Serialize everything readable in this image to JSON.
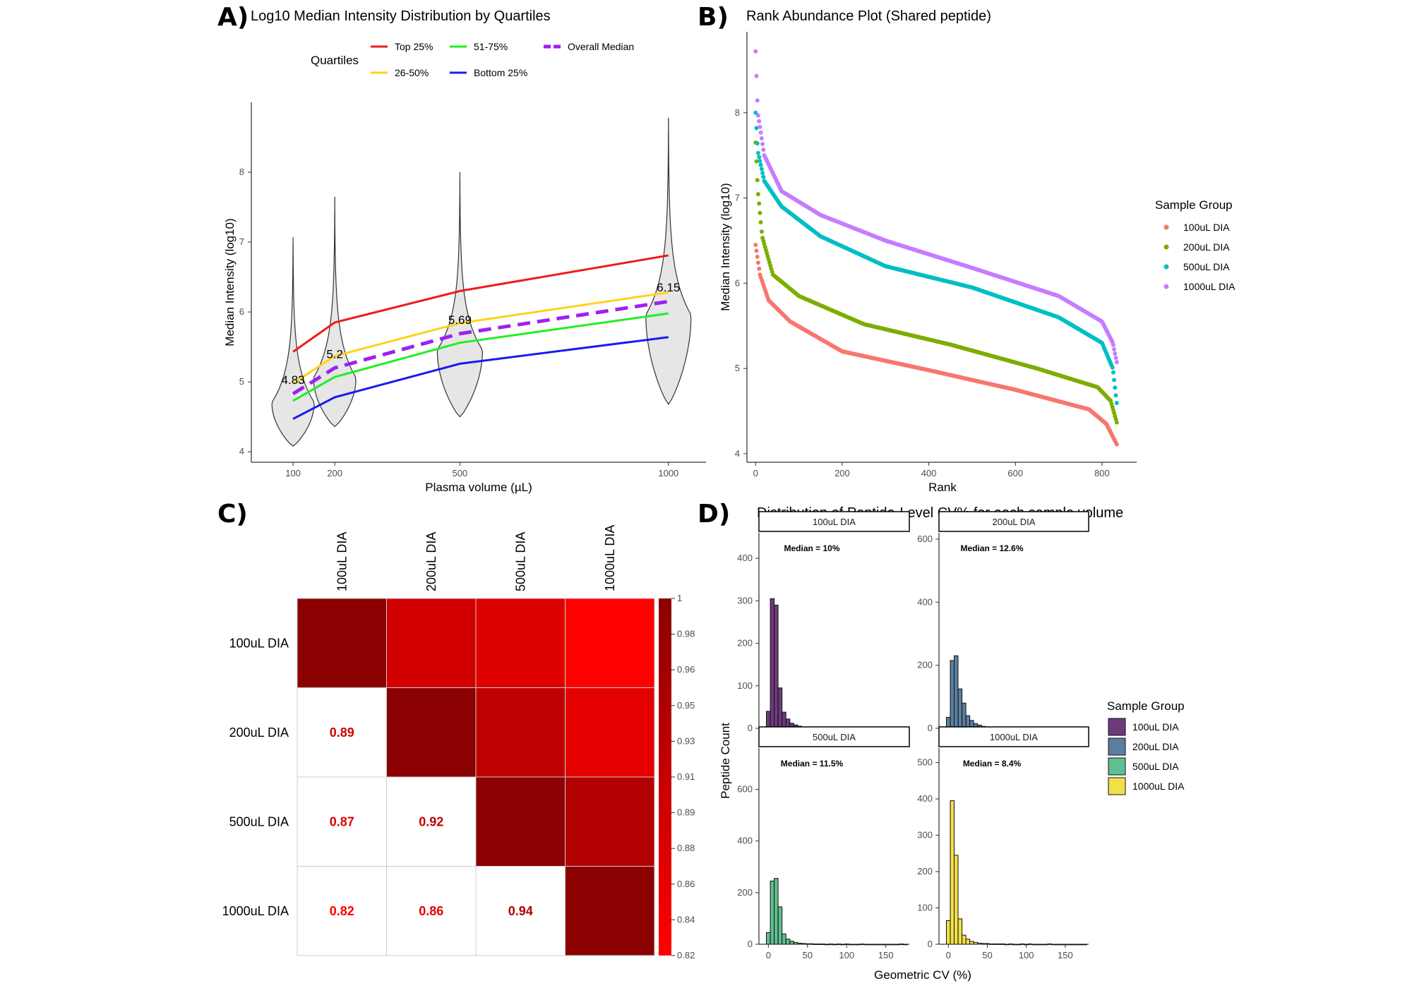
{
  "panels": {
    "A": {
      "letter": "A)",
      "title": "Log10 Median Intensity Distribution by Quartiles",
      "legend_title": "Quartiles",
      "legend": [
        {
          "name": "Top 25%",
          "color": "#ee1c1c",
          "dash": false
        },
        {
          "name": "51-75%",
          "color": "#22ee22",
          "dash": false
        },
        {
          "name": "Overall Median",
          "color": "#a020f0",
          "dash": true
        },
        {
          "name": "26-50%",
          "color": "#ffd21a",
          "dash": false
        },
        {
          "name": "Bottom 25%",
          "color": "#1a1aee",
          "dash": false
        }
      ]
    },
    "B": {
      "letter": "B)"
    },
    "C": {
      "letter": "C)"
    },
    "D": {
      "letter": "D)"
    }
  },
  "chart_data": [
    {
      "id": "A",
      "type": "line",
      "title": "Log10 Median Intensity Distribution by Quartiles",
      "xlabel": "Plasma volume (µL)",
      "ylabel": "Median Intensity (log10)",
      "xticks": [
        100,
        200,
        500,
        1000
      ],
      "yticks": [
        4,
        5,
        6,
        7,
        8
      ],
      "xlim": [
        0,
        1090
      ],
      "ylim": [
        3.85,
        9.0
      ],
      "x": [
        100,
        200,
        500,
        1000
      ],
      "series": [
        {
          "name": "Top 25%",
          "values": [
            5.43,
            5.85,
            6.3,
            6.81
          ],
          "color": "#ee1c1c"
        },
        {
          "name": "26-50%",
          "values": [
            4.98,
            5.37,
            5.84,
            6.28
          ],
          "color": "#ffd21a"
        },
        {
          "name": "Overall Median",
          "values": [
            4.83,
            5.2,
            5.69,
            6.15
          ],
          "color": "#a020f0"
        },
        {
          "name": "51-75%",
          "values": [
            4.73,
            5.07,
            5.56,
            5.98
          ],
          "color": "#22ee22"
        },
        {
          "name": "Bottom 25%",
          "values": [
            4.47,
            4.78,
            5.26,
            5.64
          ],
          "color": "#1a1aee"
        }
      ],
      "median_labels": [
        "4.83",
        "5.2",
        "5.69",
        "6.15"
      ],
      "violins": [
        {
          "x": 100,
          "min": 4.08,
          "max": 7.07,
          "mode": 4.7,
          "width": 30
        },
        {
          "x": 200,
          "min": 4.36,
          "max": 7.65,
          "mode": 5.05,
          "width": 30
        },
        {
          "x": 500,
          "min": 4.5,
          "max": 8.0,
          "mode": 5.45,
          "width": 32
        },
        {
          "x": 1000,
          "min": 4.68,
          "max": 8.78,
          "mode": 5.95,
          "width": 32
        }
      ]
    },
    {
      "id": "B",
      "type": "scatter",
      "title": "Rank Abundance Plot (Shared peptide)",
      "xlabel": "Rank",
      "ylabel": "Median Intensity (log10)",
      "xticks": [
        0,
        200,
        400,
        600,
        800
      ],
      "yticks": [
        4,
        5,
        6,
        7,
        8
      ],
      "xlim": [
        -20,
        880
      ],
      "ylim": [
        3.9,
        8.95
      ],
      "legend_title": "Sample Group",
      "n": 835,
      "series": [
        {
          "name": "100uL DIA",
          "color": "#f8766d",
          "profile": [
            [
              0,
              6.45
            ],
            [
              10,
              6.1
            ],
            [
              30,
              5.8
            ],
            [
              80,
              5.55
            ],
            [
              200,
              5.2
            ],
            [
              400,
              4.98
            ],
            [
              600,
              4.75
            ],
            [
              770,
              4.52
            ],
            [
              810,
              4.35
            ],
            [
              835,
              4.1
            ]
          ]
        },
        {
          "name": "200uL DIA",
          "color": "#7cae00",
          "profile": [
            [
              0,
              7.65
            ],
            [
              5,
              7.1
            ],
            [
              15,
              6.55
            ],
            [
              40,
              6.1
            ],
            [
              100,
              5.85
            ],
            [
              250,
              5.52
            ],
            [
              450,
              5.28
            ],
            [
              650,
              5.0
            ],
            [
              790,
              4.78
            ],
            [
              820,
              4.62
            ],
            [
              835,
              4.35
            ]
          ]
        },
        {
          "name": "500uL DIA",
          "color": "#00bfc4",
          "profile": [
            [
              0,
              8.0
            ],
            [
              5,
              7.55
            ],
            [
              20,
              7.2
            ],
            [
              60,
              6.9
            ],
            [
              150,
              6.55
            ],
            [
              300,
              6.2
            ],
            [
              500,
              5.95
            ],
            [
              700,
              5.6
            ],
            [
              800,
              5.3
            ],
            [
              825,
              5.0
            ],
            [
              835,
              4.55
            ]
          ]
        },
        {
          "name": "1000uL DIA",
          "color": "#c77cff",
          "profile": [
            [
              0,
              8.72
            ],
            [
              5,
              8.0
            ],
            [
              20,
              7.5
            ],
            [
              60,
              7.08
            ],
            [
              150,
              6.8
            ],
            [
              300,
              6.5
            ],
            [
              500,
              6.18
            ],
            [
              700,
              5.85
            ],
            [
              800,
              5.55
            ],
            [
              825,
              5.3
            ],
            [
              835,
              5.05
            ]
          ]
        }
      ]
    },
    {
      "id": "C",
      "type": "heatmap",
      "labels": [
        "100uL DIA",
        "200uL DIA",
        "500uL DIA",
        "1000uL DIA"
      ],
      "matrix": [
        [
          1.0,
          0.89,
          0.87,
          0.82
        ],
        [
          0.89,
          1.0,
          0.92,
          0.86
        ],
        [
          0.87,
          0.92,
          1.0,
          0.94
        ],
        [
          0.82,
          0.86,
          0.94,
          1.0
        ]
      ],
      "lower_labels": [
        {
          "row": 1,
          "col": 0,
          "text": "0.89"
        },
        {
          "row": 2,
          "col": 0,
          "text": "0.87"
        },
        {
          "row": 2,
          "col": 1,
          "text": "0.92"
        },
        {
          "row": 3,
          "col": 0,
          "text": "0.82"
        },
        {
          "row": 3,
          "col": 1,
          "text": "0.86"
        },
        {
          "row": 3,
          "col": 2,
          "text": "0.94"
        }
      ],
      "colorbar_ticks": [
        "1",
        "0.98",
        "0.96",
        "0.95",
        "0.93",
        "0.91",
        "0.89",
        "0.88",
        "0.86",
        "0.84",
        "0.82"
      ],
      "color_low": "#ff0000",
      "color_high": "#8b0000",
      "vmin": 0.82,
      "vmax": 1.0
    },
    {
      "id": "D",
      "type": "bar",
      "title": "Distribution of Peptide-Level CV% for each sample volume",
      "xlabel": "Geometric CV (%)",
      "ylabel": "Peptide Count",
      "legend_title": "Sample Group",
      "bin_width": 5,
      "bin_start": -2.5,
      "xticks": [
        0,
        50,
        100,
        150
      ],
      "xlim": [
        -12,
        180
      ],
      "facets": [
        {
          "name": "100uL DIA",
          "median": "Median = 10%",
          "color": "#6d3a7c",
          "ylim": [
            0,
            460
          ],
          "yticks": [
            0,
            100,
            200,
            300,
            400
          ],
          "counts": [
            40,
            305,
            290,
            95,
            38,
            22,
            12,
            8,
            5,
            3,
            2,
            1,
            1,
            1,
            1,
            0,
            0,
            1,
            0,
            0,
            1,
            0,
            0,
            0,
            0,
            0,
            0,
            0,
            0,
            0,
            0,
            0,
            0,
            0,
            0,
            0
          ]
        },
        {
          "name": "200uL DIA",
          "median": "Median = 12.6%",
          "color": "#5b7e9e",
          "ylim": [
            0,
            620
          ],
          "yticks": [
            0,
            200,
            400,
            600
          ],
          "counts": [
            35,
            215,
            230,
            125,
            80,
            40,
            25,
            15,
            10,
            6,
            4,
            3,
            2,
            2,
            1,
            1,
            1,
            2,
            1,
            1,
            1,
            0,
            1,
            1,
            0,
            0,
            1,
            0,
            0,
            0,
            0,
            1,
            0,
            0,
            0,
            0
          ]
        },
        {
          "name": "500uL DIA",
          "median": "Median = 11.5%",
          "color": "#5fbf8f",
          "ylim": [
            0,
            760
          ],
          "yticks": [
            0,
            200,
            400,
            600
          ],
          "counts": [
            45,
            245,
            255,
            145,
            40,
            20,
            12,
            7,
            4,
            3,
            2,
            2,
            1,
            1,
            1,
            0,
            1,
            0,
            1,
            0,
            1,
            0,
            0,
            0,
            1,
            0,
            0,
            0,
            0,
            0,
            0,
            0,
            0,
            0,
            1,
            0
          ]
        },
        {
          "name": "1000uL DIA",
          "median": "Median = 8.4%",
          "color": "#f0e04a",
          "ylim": [
            0,
            540
          ],
          "yticks": [
            0,
            100,
            200,
            300,
            400,
            500
          ],
          "counts": [
            65,
            395,
            245,
            70,
            25,
            14,
            8,
            5,
            3,
            2,
            2,
            1,
            1,
            1,
            1,
            0,
            1,
            0,
            0,
            1,
            0,
            1,
            0,
            0,
            0,
            0,
            1,
            0,
            0,
            0,
            0,
            0,
            0,
            0,
            0,
            0
          ]
        }
      ]
    }
  ]
}
